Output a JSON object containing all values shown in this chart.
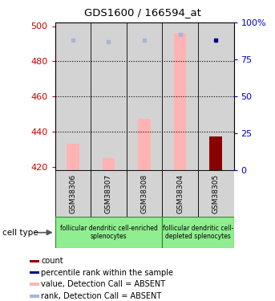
{
  "title": "GDS1600 / 166594_at",
  "samples": [
    "GSM38306",
    "GSM38307",
    "GSM38308",
    "GSM38304",
    "GSM38305"
  ],
  "ylim_left": [
    418,
    502
  ],
  "ylim_right": [
    0,
    100
  ],
  "yticks_left": [
    420,
    440,
    460,
    480,
    500
  ],
  "yticks_right": [
    0,
    25,
    50,
    75,
    100
  ],
  "ytick_labels_right": [
    "0",
    "25",
    "50",
    "75",
    "100%"
  ],
  "value_bars": [
    433,
    425,
    447,
    496,
    437
  ],
  "value_bar_color_absent": "#ffb3b3",
  "value_bar_color_present": "#8b0000",
  "bar_absent": [
    true,
    true,
    true,
    true,
    false
  ],
  "rank_dots_y": [
    88,
    87,
    88,
    92,
    88
  ],
  "rank_dots_absent": [
    true,
    true,
    true,
    true,
    false
  ],
  "rank_dot_color_absent": "#aab4d8",
  "rank_dot_color_present": "#00008b",
  "group1_samples": [
    0,
    1,
    2,
    3
  ],
  "group2_samples": [
    3,
    4
  ],
  "group1_label": "follicular dendritic cell-enriched\nsplenocytes",
  "group2_label": "follicular dendritic cell-\ndepleted splenocytes",
  "group_color": "#90ee90",
  "cell_type_label": "cell type",
  "sample_bg_color": "#d3d3d3",
  "legend_items": [
    {
      "color": "#8b0000",
      "label": "count"
    },
    {
      "color": "#00008b",
      "label": "percentile rank within the sample"
    },
    {
      "color": "#ffb3b3",
      "label": "value, Detection Call = ABSENT"
    },
    {
      "color": "#aab4d8",
      "label": "rank, Detection Call = ABSENT"
    }
  ],
  "left_tick_color": "#cc0000",
  "right_tick_color": "#0000cc",
  "dotted_lines": [
    440,
    460,
    480
  ]
}
